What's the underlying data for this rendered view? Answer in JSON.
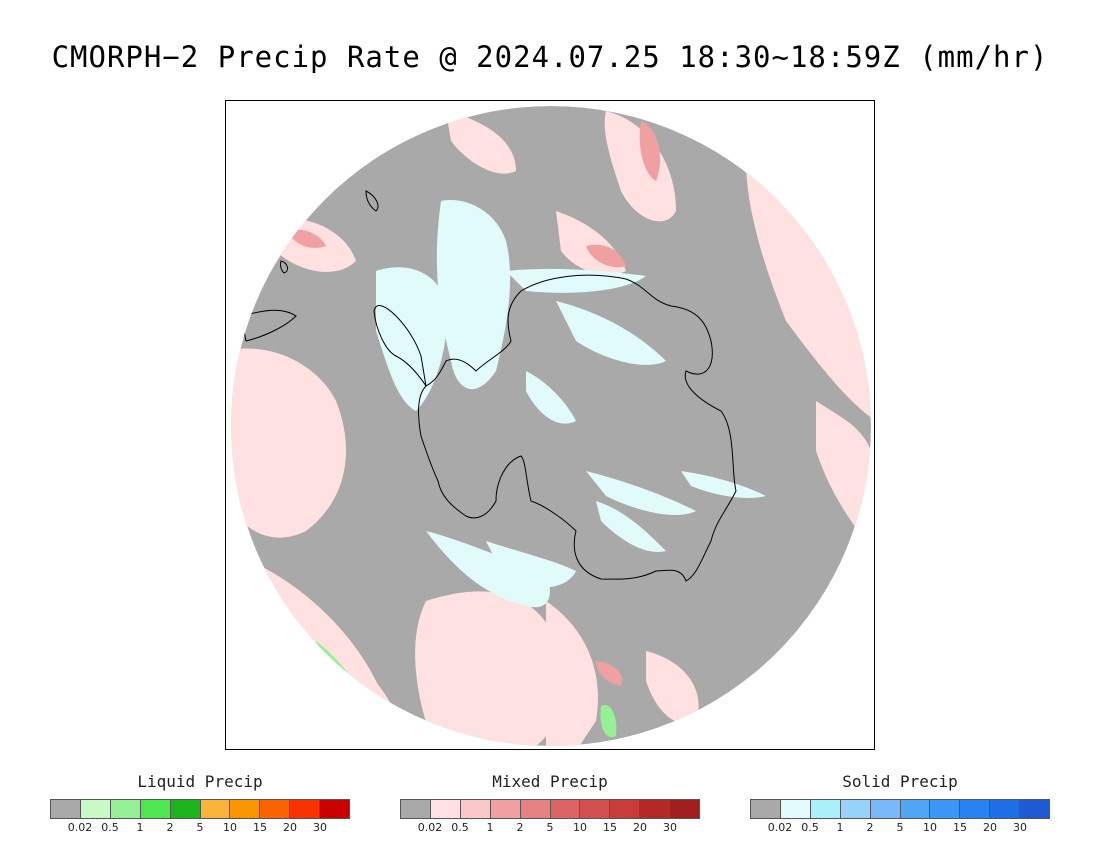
{
  "title": "CMORPH−2 Precip Rate @ 2024.07.25 18:30~18:59Z (mm/hr)",
  "map": {
    "projection": "south polar stereographic",
    "ocean_no_precip_color": "#a9a9a9",
    "land_color": "#a9a9a9",
    "coastline_color": "#000000"
  },
  "legends": [
    {
      "title": "Liquid Precip",
      "colors": [
        "#a9a9a9",
        "#c8fac8",
        "#96f096",
        "#50e650",
        "#1eb41e",
        "#fab43c",
        "#fa9600",
        "#fa6400",
        "#fa3200",
        "#c80000"
      ],
      "ticks": [
        "0.02",
        "0.5",
        "1",
        "2",
        "5",
        "10",
        "15",
        "20",
        "30"
      ]
    },
    {
      "title": "Mixed Precip",
      "colors": [
        "#a9a9a9",
        "#ffe1e1",
        "#fac8c8",
        "#f0a0a0",
        "#e68282",
        "#dc6464",
        "#d25050",
        "#c83c3c",
        "#b42828",
        "#a01e1e"
      ],
      "ticks": [
        "0.02",
        "0.5",
        "1",
        "2",
        "5",
        "10",
        "15",
        "20",
        "30"
      ]
    },
    {
      "title": "Solid Precip",
      "colors": [
        "#a9a9a9",
        "#e1fafa",
        "#aaf0fa",
        "#96d2fa",
        "#78b9fa",
        "#50a5f5",
        "#3c96f5",
        "#2882f0",
        "#1e6ee6",
        "#1e5ad2"
      ],
      "ticks": [
        "0.02",
        "0.5",
        "1",
        "2",
        "5",
        "10",
        "15",
        "20",
        "30"
      ]
    }
  ]
}
